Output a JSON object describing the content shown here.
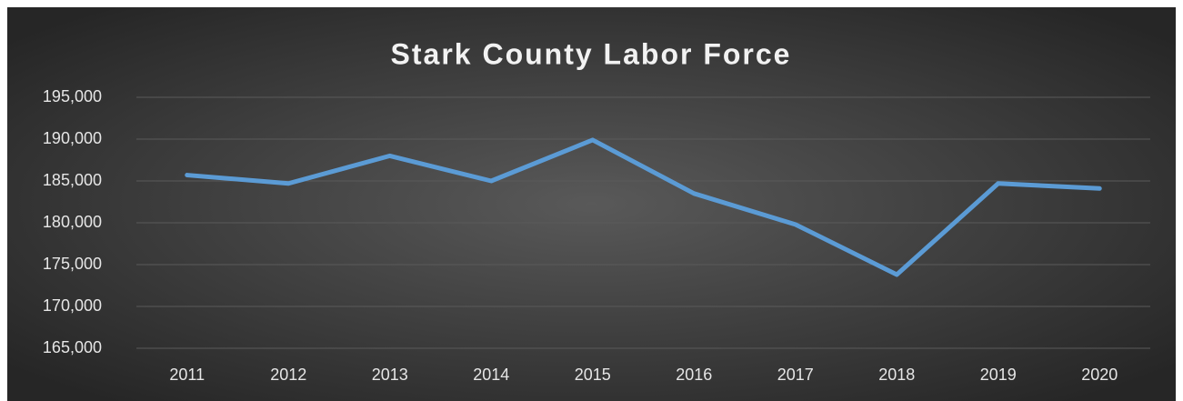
{
  "chart_data": {
    "type": "line",
    "title": "Stark County Labor Force",
    "categories": [
      "2011",
      "2012",
      "2013",
      "2014",
      "2015",
      "2016",
      "2017",
      "2018",
      "2019",
      "2020"
    ],
    "series": [
      {
        "name": "Labor Force",
        "color": "#5b9bd5",
        "values": [
          185700,
          184700,
          188000,
          185000,
          189900,
          183500,
          179800,
          173800,
          184700,
          184100
        ]
      }
    ],
    "ylim": [
      165000,
      195000
    ],
    "yticks": [
      {
        "value": 165000,
        "label": "165,000"
      },
      {
        "value": 170000,
        "label": "170,000"
      },
      {
        "value": 175000,
        "label": "175,000"
      },
      {
        "value": 180000,
        "label": "180,000"
      },
      {
        "value": 185000,
        "label": "185,000"
      },
      {
        "value": 190000,
        "label": "190,000"
      },
      {
        "value": 195000,
        "label": "195,000"
      }
    ],
    "grid": true
  }
}
